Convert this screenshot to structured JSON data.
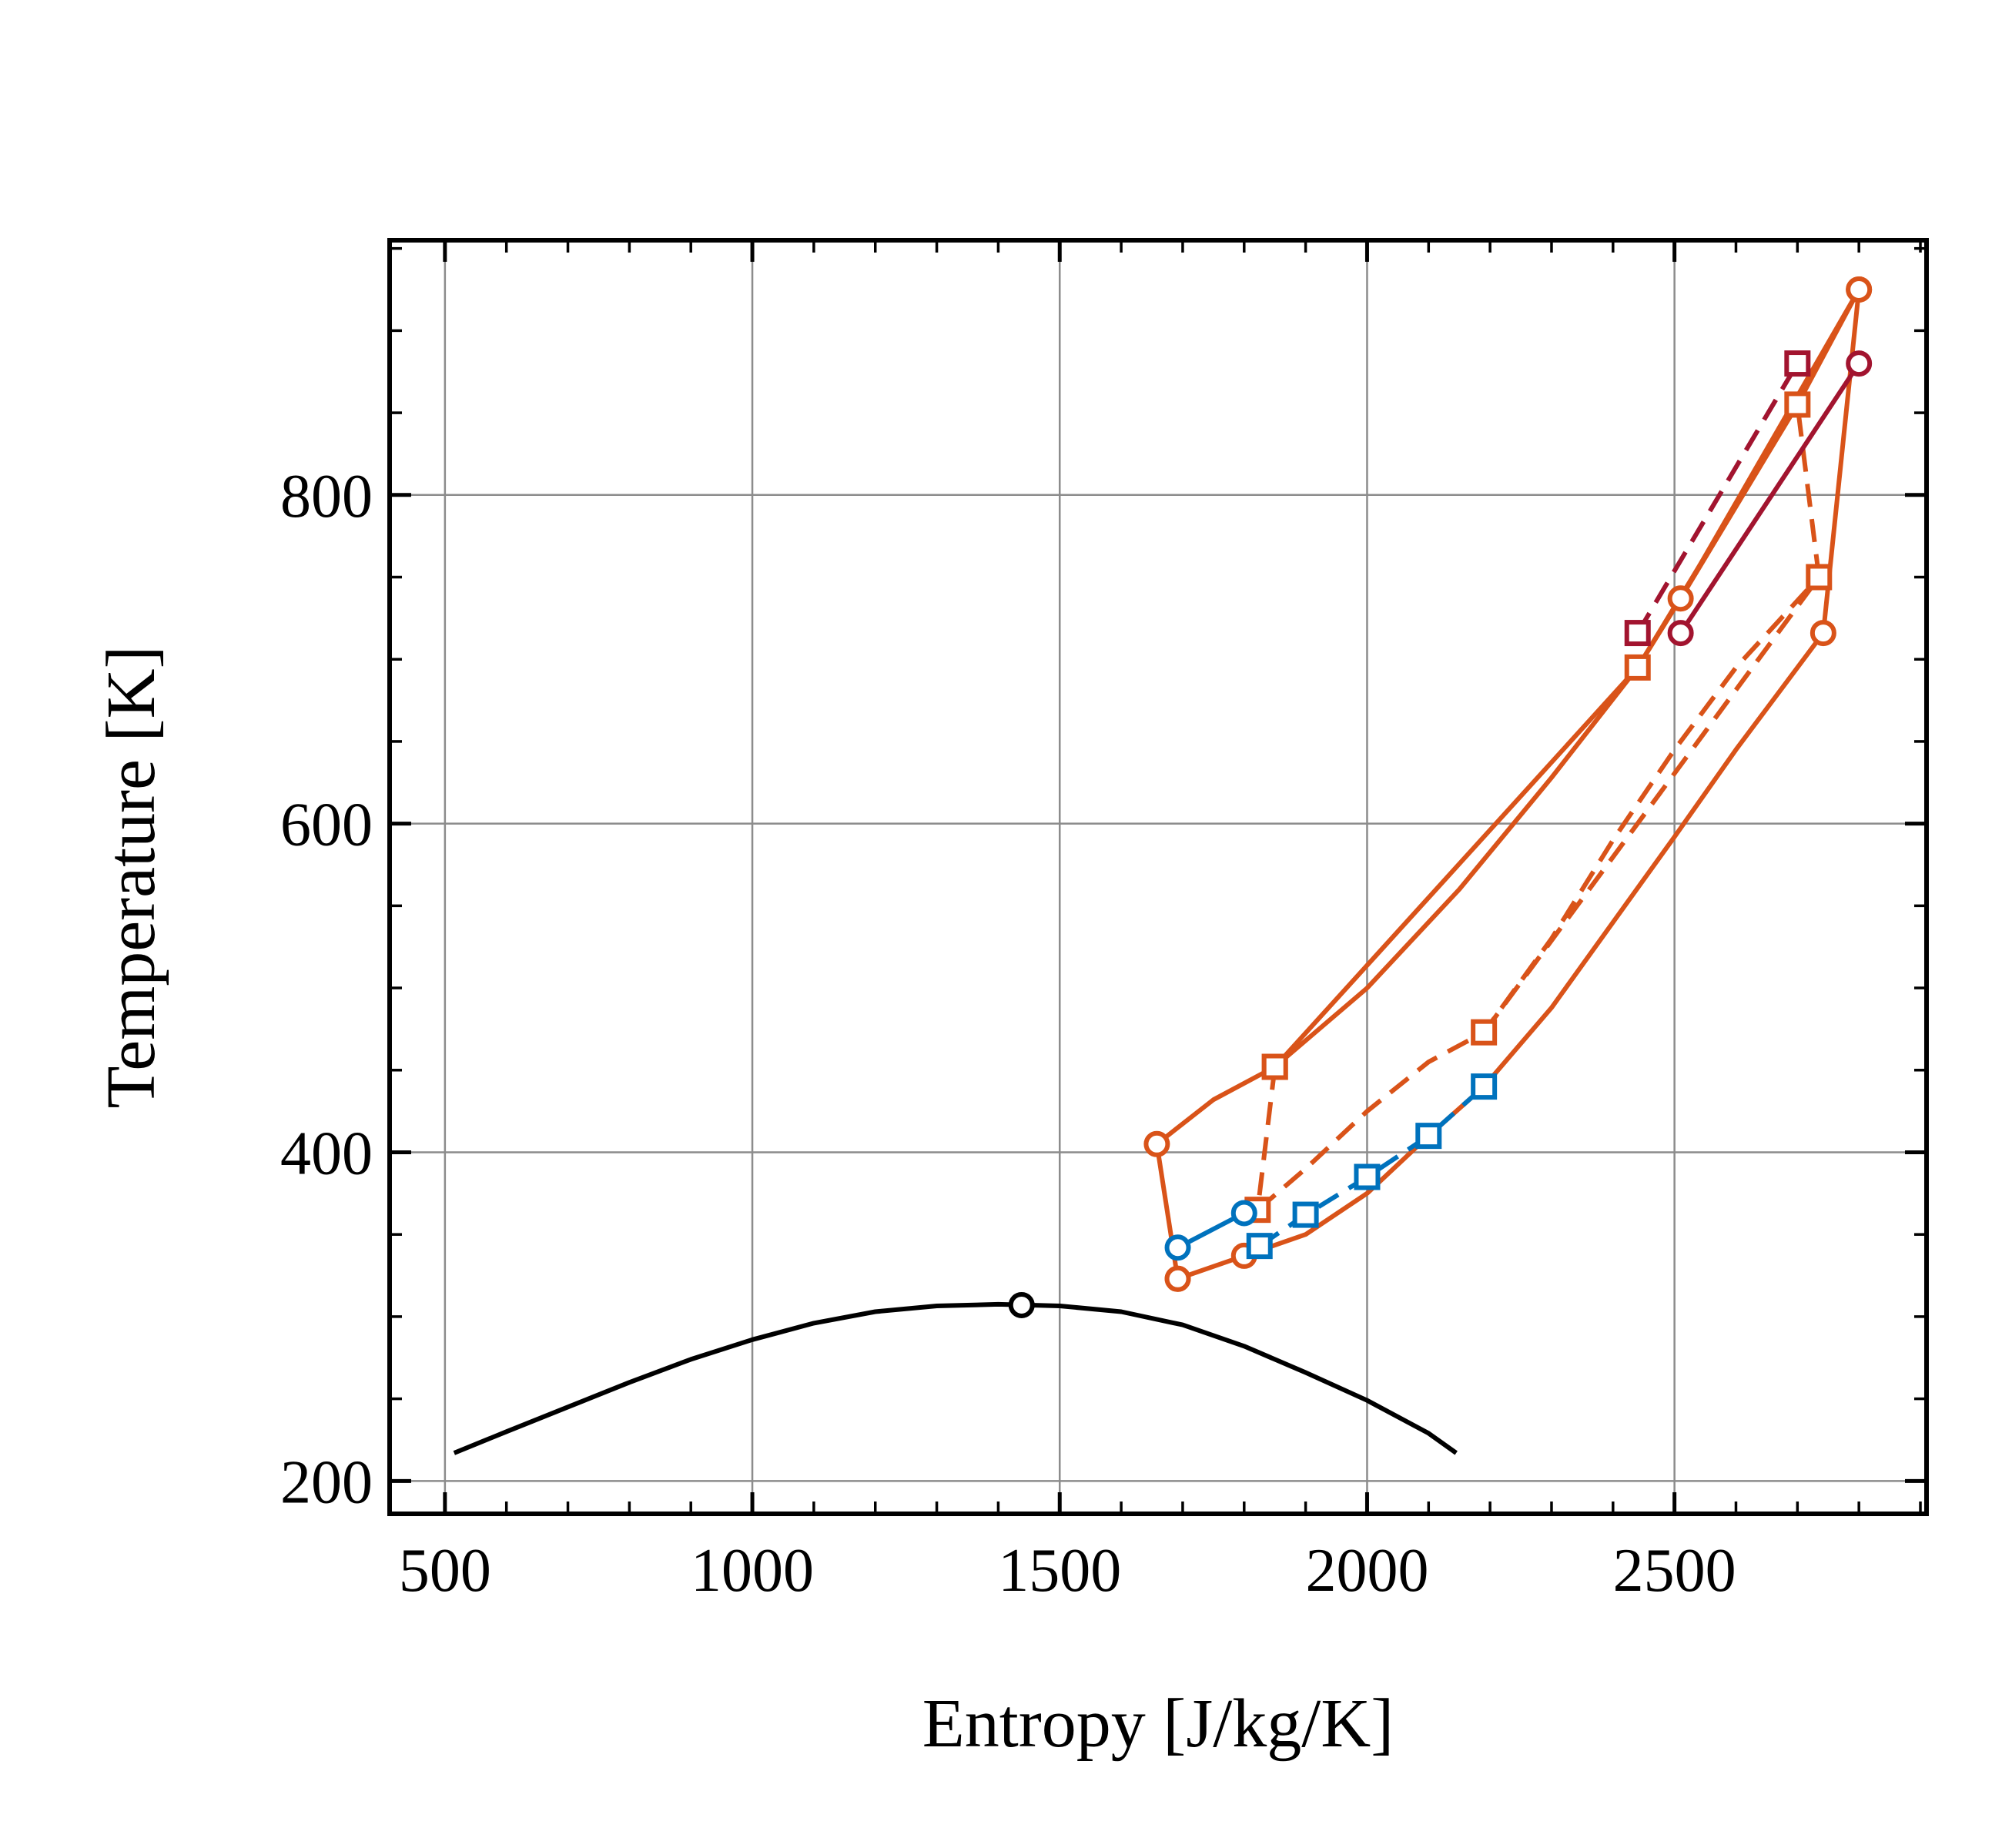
{
  "chart_data": {
    "type": "line",
    "title": "",
    "xlabel": "Entropy [J/kg/K]",
    "ylabel": "Temperature [K]",
    "xlim": [
      410,
      2910
    ],
    "ylim": [
      180,
      955
    ],
    "x_major_ticks": [
      500,
      1000,
      1500,
      2000,
      2500
    ],
    "x_minor_step": 100,
    "y_major_ticks": [
      200,
      400,
      600,
      800
    ],
    "y_minor_step": 50,
    "x_tick_labels": [
      "500",
      "1000",
      "1500",
      "2000",
      "2500"
    ],
    "y_tick_labels": [
      "200",
      "400",
      "600",
      "800"
    ],
    "grid": true,
    "legend": "none",
    "series": [
      {
        "color": "#000000",
        "dash": "solid",
        "marker": "none",
        "points": [
          [
            515,
            217
          ],
          [
            600,
            230
          ],
          [
            700,
            245
          ],
          [
            800,
            260
          ],
          [
            900,
            274
          ],
          [
            1000,
            286
          ],
          [
            1100,
            296
          ],
          [
            1200,
            303
          ],
          [
            1300,
            306.5
          ],
          [
            1400,
            307.5
          ],
          [
            1500,
            306.5
          ],
          [
            1600,
            303
          ],
          [
            1700,
            295
          ],
          [
            1800,
            282
          ],
          [
            1900,
            266
          ],
          [
            2000,
            249
          ],
          [
            2100,
            229
          ],
          [
            2145,
            217
          ]
        ]
      },
      {
        "color": "#000000",
        "dash": "solid",
        "marker": "circle",
        "points": [
          [
            1438,
            307
          ]
        ]
      },
      {
        "color": "#D95319",
        "dash": "solid",
        "marker": "circle",
        "points": [
          [
            1658,
            405
          ],
          [
            1692,
            323
          ]
        ]
      },
      {
        "color": "#D95319",
        "dash": "solid",
        "marker": "none",
        "points": [
          [
            1658,
            405
          ],
          [
            1750,
            432
          ],
          [
            1850,
            452
          ],
          [
            2000,
            500
          ],
          [
            2150,
            560
          ],
          [
            2300,
            628
          ],
          [
            2440,
            695
          ],
          [
            2510,
            737
          ],
          [
            2700,
            855
          ],
          [
            2800,
            925
          ]
        ]
      },
      {
        "color": "#D95319",
        "dash": "solid",
        "marker": "circle",
        "points": [
          [
            2510,
            737
          ],
          [
            2800,
            925
          ]
        ]
      },
      {
        "color": "#D95319",
        "dash": "solid",
        "marker": "square",
        "points": [
          [
            1850,
            452
          ],
          [
            2440,
            695
          ],
          [
            2700,
            855
          ]
        ]
      },
      {
        "color": "#D95319",
        "dash": "solid",
        "marker": "circle",
        "points": [
          [
            1692,
            323
          ],
          [
            1800,
            337
          ]
        ]
      },
      {
        "color": "#D95319",
        "dash": "solid",
        "marker": "none",
        "points": [
          [
            1800,
            337
          ],
          [
            1900,
            350
          ],
          [
            2000,
            375
          ],
          [
            2100,
            410
          ],
          [
            2190,
            440
          ],
          [
            2300,
            488
          ],
          [
            2400,
            540
          ],
          [
            2500,
            592
          ],
          [
            2600,
            645
          ],
          [
            2742,
            716
          ]
        ]
      },
      {
        "color": "#D95319",
        "dash": "solid",
        "marker": "circle",
        "points": [
          [
            2742,
            716
          ],
          [
            2800,
            925
          ]
        ]
      },
      {
        "color": "#D95319",
        "dash": "dashed",
        "marker": "square",
        "points": [
          [
            1850,
            452
          ],
          [
            1822,
            365
          ]
        ]
      },
      {
        "color": "#D95319",
        "dash": "dashed",
        "marker": "none",
        "points": [
          [
            1822,
            365
          ],
          [
            1900,
            390
          ],
          [
            2000,
            425
          ],
          [
            2100,
            455
          ],
          [
            2190,
            473
          ],
          [
            2300,
            530
          ],
          [
            2400,
            590
          ],
          [
            2500,
            645
          ],
          [
            2600,
            695
          ],
          [
            2735,
            750
          ]
        ]
      },
      {
        "color": "#D95319",
        "dash": "dashed",
        "marker": "square",
        "points": [
          [
            2190,
            473
          ],
          [
            2735,
            750
          ]
        ]
      },
      {
        "color": "#D95319",
        "dash": "dashed",
        "marker": "none",
        "points": [
          [
            2735,
            750
          ],
          [
            2700,
            855
          ]
        ]
      },
      {
        "color": "#0072BD",
        "dash": "solid",
        "marker": "circle",
        "points": [
          [
            1692,
            342
          ],
          [
            1800,
            363
          ]
        ]
      },
      {
        "color": "#0072BD",
        "dash": "dashed",
        "marker": "square",
        "points": [
          [
            1825,
            343
          ],
          [
            1900,
            362
          ],
          [
            2000,
            385
          ],
          [
            2100,
            410
          ],
          [
            2190,
            440
          ]
        ]
      },
      {
        "color": "#A2142F",
        "dash": "solid",
        "marker": "circle",
        "points": [
          [
            2510,
            716
          ],
          [
            2800,
            880
          ]
        ]
      },
      {
        "color": "#A2142F",
        "dash": "dashed",
        "marker": "square",
        "points": [
          [
            2440,
            716
          ],
          [
            2700,
            880
          ]
        ]
      }
    ]
  }
}
